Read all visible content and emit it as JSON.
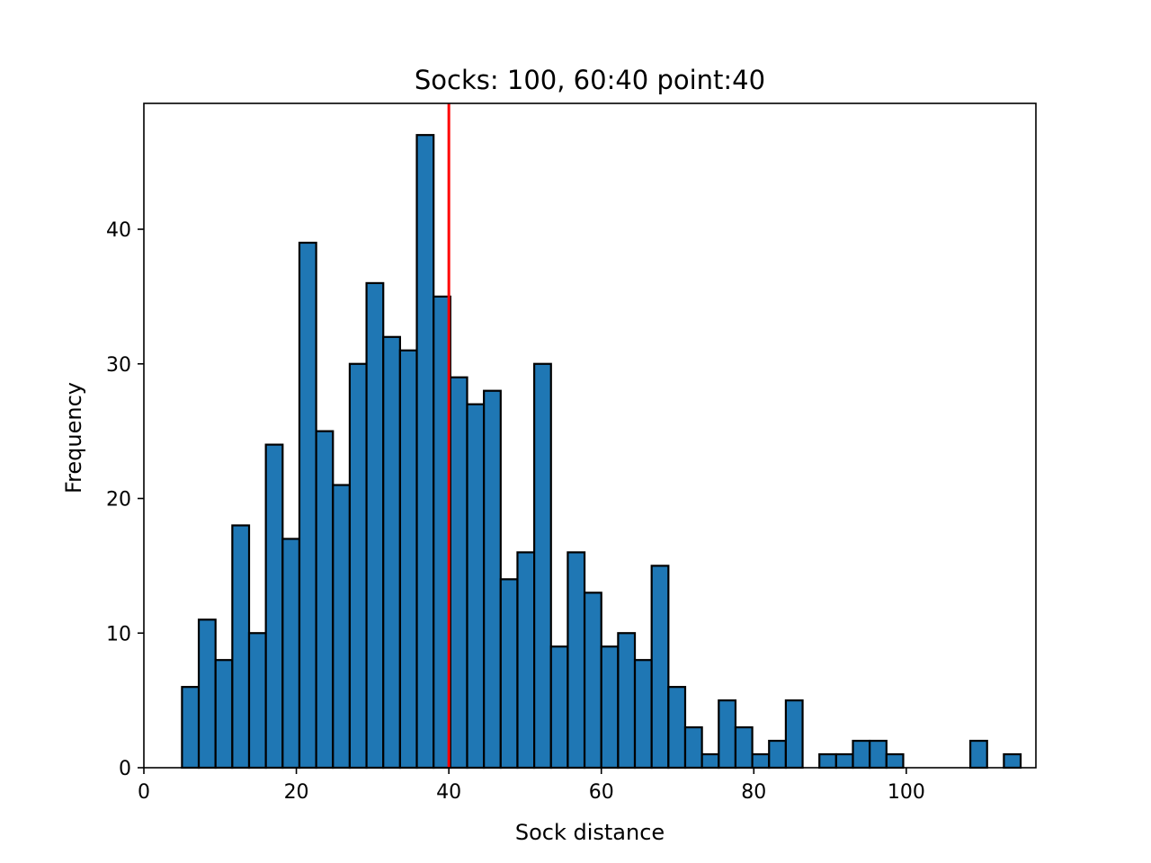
{
  "chart_data": {
    "type": "bar",
    "title": "Socks: 100, 60:40 point:40",
    "xlabel": "Sock distance",
    "ylabel": "Frequency",
    "xlim": [
      0,
      117
    ],
    "ylim": [
      0,
      49.35
    ],
    "xticks": [
      0,
      20,
      40,
      60,
      80,
      100
    ],
    "yticks": [
      0,
      10,
      20,
      30,
      40
    ],
    "grid": false,
    "bin_start": 5.0,
    "bin_width": 2.2,
    "values": [
      6,
      11,
      8,
      18,
      10,
      24,
      17,
      39,
      25,
      21,
      30,
      36,
      32,
      31,
      47,
      35,
      29,
      27,
      28,
      14,
      16,
      30,
      9,
      16,
      13,
      9,
      10,
      8,
      15,
      6,
      3,
      1,
      5,
      3,
      1,
      2,
      5,
      0,
      1,
      1,
      2,
      2,
      1,
      0,
      0,
      0,
      0,
      2,
      0,
      1
    ],
    "bar_color": "#1f77b4",
    "bar_edge_color": "#000000",
    "vline": {
      "x": 40,
      "color": "#ff0000"
    }
  }
}
